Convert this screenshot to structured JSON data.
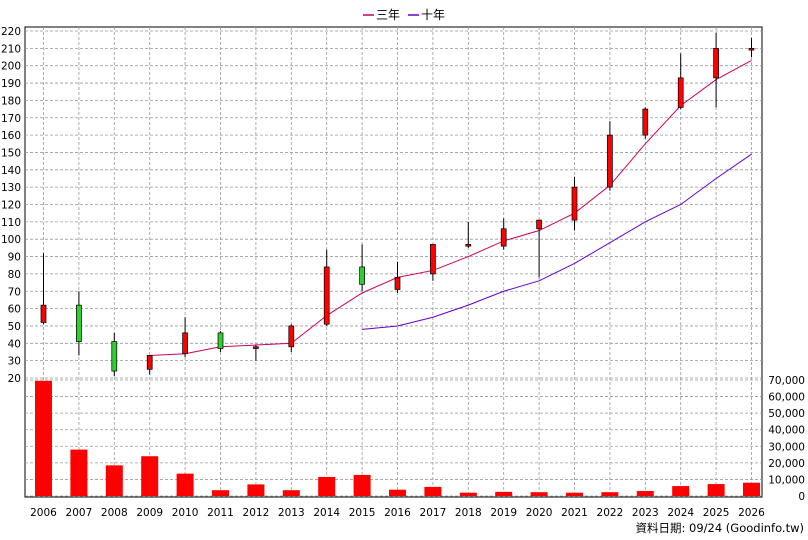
{
  "chart_data": {
    "type": "candlestick+bar",
    "legend": [
      {
        "name": "三年",
        "color": "#cc0066"
      },
      {
        "name": "十年",
        "color": "#6600cc"
      }
    ],
    "source_note": "資料日期: 09/24  (Goodinfo.tw)",
    "categories": [
      "2006",
      "2007",
      "2008",
      "2009",
      "2010",
      "2011",
      "2012",
      "2013",
      "2014",
      "2015",
      "2016",
      "2017",
      "2018",
      "2019",
      "2020",
      "2021",
      "2022",
      "2023",
      "2024",
      "2025",
      "2026"
    ],
    "price_axis": {
      "range": [
        20,
        220
      ],
      "ticks": [
        20,
        30,
        40,
        50,
        60,
        70,
        80,
        90,
        100,
        110,
        120,
        130,
        140,
        150,
        160,
        170,
        180,
        190,
        200,
        210,
        220
      ]
    },
    "volume_axis": {
      "range": [
        0,
        70000
      ],
      "ticks": [
        0,
        10000,
        20000,
        30000,
        40000,
        50000,
        60000,
        70000
      ],
      "tick_labels": [
        "0",
        "10,000",
        "20,000",
        "30,000",
        "40,000",
        "50,000",
        "60,000",
        "70,000"
      ]
    },
    "candles": [
      {
        "year": "2006",
        "open": 52,
        "high": 92,
        "low": 51,
        "close": 62
      },
      {
        "year": "2007",
        "open": 62,
        "high": 70,
        "low": 33,
        "close": 41
      },
      {
        "year": "2008",
        "open": 41,
        "high": 46,
        "low": 21,
        "close": 24
      },
      {
        "year": "2009",
        "open": 25,
        "high": 33,
        "low": 22,
        "close": 33
      },
      {
        "year": "2010",
        "open": 34,
        "high": 55,
        "low": 32,
        "close": 46
      },
      {
        "year": "2011",
        "open": 46,
        "high": 47,
        "low": 35,
        "close": 37
      },
      {
        "year": "2012",
        "open": 37,
        "high": 39,
        "low": 30,
        "close": 38
      },
      {
        "year": "2013",
        "open": 38,
        "high": 51,
        "low": 35,
        "close": 50
      },
      {
        "year": "2014",
        "open": 51,
        "high": 94,
        "low": 50,
        "close": 84
      },
      {
        "year": "2015",
        "open": 84,
        "high": 97,
        "low": 70,
        "close": 74
      },
      {
        "year": "2016",
        "open": 71,
        "high": 87,
        "low": 69,
        "close": 78
      },
      {
        "year": "2017",
        "open": 80,
        "high": 97,
        "low": 76,
        "close": 97
      },
      {
        "year": "2018",
        "open": 96,
        "high": 110,
        "low": 95,
        "close": 97
      },
      {
        "year": "2019",
        "open": 96,
        "high": 112,
        "low": 94,
        "close": 106
      },
      {
        "year": "2020",
        "open": 106,
        "high": 111,
        "low": 78,
        "close": 111
      },
      {
        "year": "2021",
        "open": 111,
        "high": 136,
        "low": 105,
        "close": 130
      },
      {
        "year": "2022",
        "open": 130,
        "high": 168,
        "low": 128,
        "close": 160
      },
      {
        "year": "2023",
        "open": 160,
        "high": 176,
        "low": 158,
        "close": 175
      },
      {
        "year": "2024",
        "open": 176,
        "high": 207,
        "low": 175,
        "close": 193
      },
      {
        "year": "2025",
        "open": 193,
        "high": 219,
        "low": 176,
        "close": 210
      },
      {
        "year": "2026",
        "open": 209,
        "high": 216,
        "low": 205,
        "close": 210
      }
    ],
    "series": [
      {
        "name": "三年",
        "x": [
          "2009",
          "2010",
          "2011",
          "2012",
          "2013",
          "2014",
          "2015",
          "2016",
          "2017",
          "2018",
          "2019",
          "2020",
          "2021",
          "2022",
          "2023",
          "2024",
          "2025",
          "2026"
        ],
        "values": [
          33,
          34,
          38,
          39,
          40,
          56,
          69,
          78,
          82,
          90,
          99,
          105,
          115,
          131,
          155,
          177,
          192,
          203
        ]
      },
      {
        "name": "十年",
        "x": [
          "2015",
          "2016",
          "2017",
          "2018",
          "2019",
          "2020",
          "2021",
          "2022",
          "2023",
          "2024",
          "2025",
          "2026"
        ],
        "values": [
          48,
          50,
          55,
          62,
          70,
          76,
          86,
          98,
          110,
          120,
          135,
          149
        ]
      }
    ],
    "volume": {
      "values": [
        69500,
        28000,
        18500,
        24000,
        13500,
        3500,
        7000,
        3500,
        11500,
        12700,
        3800,
        5500,
        2000,
        2500,
        2300,
        2000,
        2300,
        3000,
        6000,
        7200,
        8000
      ]
    }
  },
  "colors": {
    "up": "#ff0000",
    "down": "#33cc33",
    "volume": "#ff0000",
    "grid": "#999999",
    "wick": "#000000"
  }
}
